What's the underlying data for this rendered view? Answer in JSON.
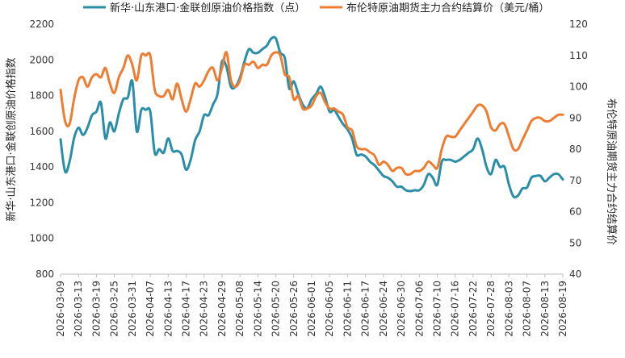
{
  "chart_data": {
    "type": "line",
    "title": "",
    "legend_position": "top",
    "grid": false,
    "left_axis": {
      "label": "新华·山东港口·金联创原油价格指数",
      "ylim": [
        800,
        2200
      ],
      "ticks": [
        "800",
        "1000",
        "1200",
        "1400",
        "1600",
        "1800",
        "2000",
        "2200"
      ]
    },
    "right_axis": {
      "label": "布伦特原油期货主力合约结算价",
      "ylim": [
        40,
        120
      ],
      "ticks": [
        "40",
        "50",
        "60",
        "70",
        "80",
        "90",
        "100",
        "110",
        "120"
      ]
    },
    "x_tick_labels": [
      "2026-03-09",
      "2026-03-13",
      "2026-03-19",
      "2026-03-25",
      "2026-03-31",
      "2026-04-07",
      "2026-04-13",
      "2026-04-17",
      "2026-04-23",
      "2026-04-29",
      "2026-05-08",
      "2026-05-14",
      "2026-05-20",
      "2026-05-26",
      "2026-06-01",
      "2026-06-05",
      "2026-06-11",
      "2026-06-17",
      "2026-06-24",
      "2026-06-30",
      "2026-07-06",
      "2026-07-10",
      "2026-07-16",
      "2026-07-22",
      "2026-07-28",
      "2026-08-03",
      "2026-08-07",
      "2026-08-13",
      "2026-08-19"
    ],
    "series": [
      {
        "name": "新华·山东港口·金联创原油价格指数（点）",
        "axis": "left",
        "color": "#2b8ea8",
        "values": [
          1555,
          1375,
          1430,
          1560,
          1620,
          1580,
          1620,
          1690,
          1710,
          1760,
          1560,
          1650,
          1600,
          1700,
          1780,
          1790,
          1880,
          1600,
          1720,
          1720,
          1710,
          1480,
          1500,
          1480,
          1560,
          1490,
          1490,
          1470,
          1385,
          1440,
          1550,
          1600,
          1690,
          1690,
          1750,
          1810,
          1990,
          1960,
          1850,
          1850,
          1900,
          1990,
          2060,
          2040,
          2040,
          2060,
          2080,
          2120,
          2120,
          2040,
          2010,
          1840,
          1880,
          1810,
          1750,
          1730,
          1780,
          1810,
          1850,
          1790,
          1710,
          1720,
          1680,
          1640,
          1610,
          1560,
          1470,
          1470,
          1460,
          1430,
          1410,
          1380,
          1350,
          1340,
          1320,
          1290,
          1290,
          1270,
          1265,
          1270,
          1270,
          1300,
          1360,
          1340,
          1300,
          1430,
          1440,
          1440,
          1430,
          1440,
          1460,
          1480,
          1500,
          1560,
          1500,
          1400,
          1360,
          1440,
          1400,
          1400,
          1300,
          1235,
          1240,
          1280,
          1285,
          1340,
          1350,
          1350,
          1320,
          1340,
          1360,
          1360,
          1330
        ]
      },
      {
        "name": "布伦特原油期货主力合约结算价（美元/桶）",
        "axis": "right",
        "color": "#ee7d31",
        "values": [
          99,
          89,
          88,
          96,
          102,
          103,
          100,
          103,
          104,
          103,
          106,
          101,
          98,
          103,
          106,
          110,
          107,
          102,
          110,
          110,
          110,
          99,
          97,
          97,
          99,
          96,
          101,
          96,
          92,
          96,
          101,
          100,
          102,
          105,
          106,
          102,
          106,
          111,
          102,
          100,
          102,
          107,
          107,
          108,
          106,
          107,
          107,
          110,
          111,
          110,
          104,
          103,
          96,
          97,
          93,
          93,
          94,
          97,
          98,
          95,
          93,
          93,
          92,
          91,
          87,
          86,
          81,
          80,
          80,
          79,
          78,
          75,
          76,
          75,
          73,
          74,
          74,
          72,
          72,
          73,
          73,
          74,
          76,
          75,
          74,
          80,
          84,
          84,
          84,
          86,
          88,
          90,
          92,
          94,
          94,
          92,
          87,
          86,
          88,
          88,
          84,
          80,
          80,
          83,
          86,
          89,
          90,
          90,
          89,
          89,
          90,
          91,
          91
        ]
      }
    ]
  }
}
